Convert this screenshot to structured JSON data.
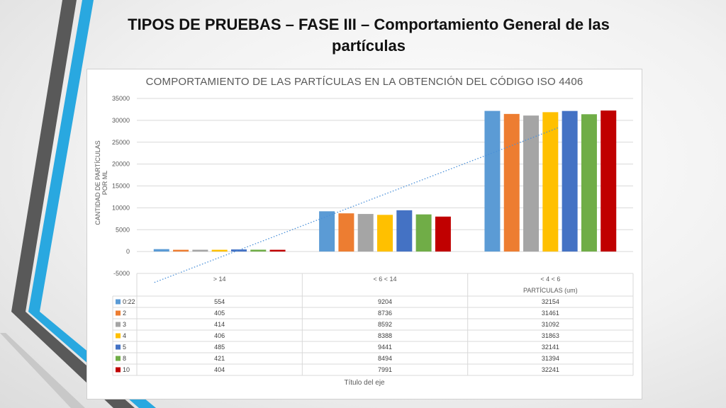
{
  "slide": {
    "title": "TIPOS DE PRUEBAS – FASE III – Comportamiento General de las partículas"
  },
  "colors": {
    "stripe_dark": "#595959",
    "stripe_blue": "#29a8e0",
    "stripe_light": "#c8c8c8",
    "trendline": "#4a90d9",
    "grid": "#d9d9d9"
  },
  "chart_data": {
    "type": "bar",
    "title": "COMPORTAMIENTO DE LAS PARTÍCULAS EN LA OBTENCIÓN DEL CÓDIGO ISO 4406",
    "ylabel": "CANTIDAD DE PARTÍCULAS POR ML",
    "xlabel": "Título del eje",
    "group_label": "PARTÍCULAS (um)",
    "categories": [
      "> 14",
      "< 6 < 14",
      "< 4 < 6"
    ],
    "ylim": [
      -5000,
      35000
    ],
    "yticks": [
      -5000,
      0,
      5000,
      10000,
      15000,
      20000,
      25000,
      30000,
      35000
    ],
    "grid": true,
    "legend": "data-table",
    "series": [
      {
        "name": "0:22",
        "color": "#5b9bd5",
        "values": [
          554,
          9204,
          32154
        ]
      },
      {
        "name": "2",
        "color": "#ed7d31",
        "values": [
          405,
          8736,
          31461
        ]
      },
      {
        "name": "3",
        "color": "#a5a5a5",
        "values": [
          414,
          8592,
          31092
        ]
      },
      {
        "name": "4",
        "color": "#ffc000",
        "values": [
          406,
          8388,
          31863
        ]
      },
      {
        "name": "5",
        "color": "#4472c4",
        "values": [
          485,
          9441,
          32141
        ]
      },
      {
        "name": "8",
        "color": "#70ad47",
        "values": [
          421,
          8494,
          31394
        ]
      },
      {
        "name": "10",
        "color": "#c00000",
        "values": [
          404,
          7991,
          32241
        ]
      }
    ],
    "trendline": {
      "type": "linear",
      "style": "dotted"
    }
  }
}
